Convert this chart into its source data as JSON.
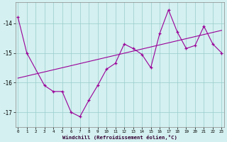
{
  "x": [
    0,
    1,
    2,
    3,
    4,
    5,
    6,
    7,
    8,
    9,
    10,
    11,
    12,
    13,
    14,
    15,
    16,
    17,
    18,
    19,
    20,
    21,
    22,
    23
  ],
  "y_main": [
    -13.8,
    -15.0,
    null,
    -16.1,
    -16.3,
    -16.3,
    -17.0,
    -17.15,
    -16.6,
    -16.1,
    -15.55,
    -15.35,
    -14.7,
    -14.85,
    -15.05,
    -15.5,
    -14.35,
    -13.55,
    -14.3,
    -14.85,
    -14.75,
    -14.1,
    -14.7,
    -15.0
  ],
  "y_trend": [
    -15.85,
    -15.78,
    -15.71,
    -15.64,
    -15.57,
    -15.5,
    -15.43,
    -15.36,
    -15.29,
    -15.22,
    -15.15,
    -15.08,
    -15.01,
    -14.94,
    -14.87,
    -14.8,
    -14.73,
    -14.66,
    -14.59,
    -14.52,
    -14.45,
    -14.38,
    -14.31,
    -14.24
  ],
  "color_main": "#990099",
  "color_trend": "#990099",
  "bg_color": "#d4f0f0",
  "grid_color": "#99cccc",
  "xlabel": "Windchill (Refroidissement éolien,°C)",
  "yticks": [
    -17,
    -16,
    -15,
    -14
  ],
  "xticks": [
    0,
    1,
    2,
    3,
    4,
    5,
    6,
    7,
    8,
    9,
    10,
    11,
    12,
    13,
    14,
    15,
    16,
    17,
    18,
    19,
    20,
    21,
    22,
    23
  ],
  "ylim": [
    -17.5,
    -13.3
  ],
  "xlim": [
    -0.3,
    23.3
  ]
}
